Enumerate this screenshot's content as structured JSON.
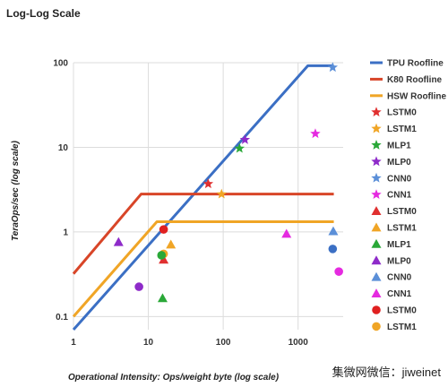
{
  "chart_data": {
    "type": "scatter",
    "title": "Log-Log Scale",
    "xlabel": "Operational Intensity: Ops/weight byte (log scale)",
    "ylabel": "TeraOps/sec (log scale)",
    "x_scale": "log",
    "y_scale": "log",
    "xlim": [
      1,
      4000
    ],
    "ylim": [
      0.07,
      100
    ],
    "x_ticks": [
      1,
      10,
      100,
      1000
    ],
    "x_tick_labels": [
      "1",
      "10",
      "100",
      "1000"
    ],
    "y_ticks": [
      0.1,
      1,
      10,
      100
    ],
    "y_tick_labels": [
      "0.1",
      "1",
      "10",
      "100"
    ],
    "grid": true,
    "legend_position": "right",
    "series": [
      {
        "name": "TPU Roofline",
        "kind": "line",
        "color": "#3b6fc4",
        "x": [
          1,
          1350,
          3000
        ],
        "y": [
          0.07,
          92,
          92
        ]
      },
      {
        "name": "K80 Roofline",
        "kind": "line",
        "color": "#d84528",
        "x": [
          1,
          8,
          3000
        ],
        "y": [
          0.32,
          2.8,
          2.8
        ]
      },
      {
        "name": "HSW Roofline",
        "kind": "line",
        "color": "#f0a526",
        "x": [
          1,
          13,
          3000
        ],
        "y": [
          0.1,
          1.32,
          1.32
        ]
      },
      {
        "name": "LSTM0",
        "kind": "point",
        "marker": "star",
        "color": "#e03030",
        "x": [
          63
        ],
        "y": [
          3.7
        ]
      },
      {
        "name": "LSTM1",
        "kind": "point",
        "marker": "star",
        "color": "#f0a526",
        "x": [
          95
        ],
        "y": [
          2.8
        ]
      },
      {
        "name": "MLP1",
        "kind": "point",
        "marker": "star",
        "color": "#2aa838",
        "x": [
          165
        ],
        "y": [
          9.7
        ]
      },
      {
        "name": "MLP0",
        "kind": "point",
        "marker": "star",
        "color": "#8e2bc9",
        "x": [
          195
        ],
        "y": [
          12.3
        ]
      },
      {
        "name": "CNN0",
        "kind": "point",
        "marker": "star",
        "color": "#5b8fd8",
        "x": [
          2900
        ],
        "y": [
          88
        ]
      },
      {
        "name": "CNN1",
        "kind": "point",
        "marker": "star",
        "color": "#e52ae0",
        "x": [
          1700
        ],
        "y": [
          14.5
        ]
      },
      {
        "name": "LSTM0",
        "kind": "point",
        "marker": "triangle",
        "color": "#e03030",
        "x": [
          16
        ],
        "y": [
          0.47
        ]
      },
      {
        "name": "LSTM1",
        "kind": "point",
        "marker": "triangle",
        "color": "#f0a526",
        "x": [
          20
        ],
        "y": [
          0.71
        ]
      },
      {
        "name": "MLP1",
        "kind": "point",
        "marker": "triangle",
        "color": "#2aa838",
        "x": [
          15.5
        ],
        "y": [
          0.165
        ]
      },
      {
        "name": "MLP0",
        "kind": "point",
        "marker": "triangle",
        "color": "#8e2bc9",
        "x": [
          4
        ],
        "y": [
          0.76
        ]
      },
      {
        "name": "CNN0",
        "kind": "point",
        "marker": "triangle",
        "color": "#5b8fd8",
        "x": [
          2950
        ],
        "y": [
          1.02
        ]
      },
      {
        "name": "CNN1",
        "kind": "point",
        "marker": "triangle",
        "color": "#e52ae0",
        "x": [
          700
        ],
        "y": [
          0.95
        ]
      },
      {
        "name": "LSTM0",
        "kind": "point",
        "marker": "circle",
        "color": "#e02020",
        "x": [
          16
        ],
        "y": [
          1.07
        ]
      },
      {
        "name": "LSTM1",
        "kind": "point",
        "marker": "circle",
        "color": "#f0a526",
        "x": [
          16
        ],
        "y": [
          0.55
        ]
      },
      {
        "name": "",
        "kind": "point",
        "marker": "circle",
        "color": "#2aa838",
        "x": [
          15
        ],
        "y": [
          0.53
        ]
      },
      {
        "name": "",
        "kind": "point",
        "marker": "circle",
        "color": "#8e2bc9",
        "x": [
          7.5
        ],
        "y": [
          0.225
        ]
      },
      {
        "name": "",
        "kind": "point",
        "marker": "circle",
        "color": "#3b6fc4",
        "x": [
          2900
        ],
        "y": [
          0.63
        ]
      },
      {
        "name": "",
        "kind": "point",
        "marker": "circle",
        "color": "#e52ae0",
        "x": [
          3500
        ],
        "y": [
          0.34
        ]
      }
    ],
    "legend": [
      {
        "label": "TPU Roofline",
        "marker": "line",
        "color": "#3b6fc4"
      },
      {
        "label": "K80 Roofline",
        "marker": "line",
        "color": "#d84528"
      },
      {
        "label": "HSW Roofline",
        "marker": "line",
        "color": "#f0a526"
      },
      {
        "label": "LSTM0",
        "marker": "star",
        "color": "#e03030"
      },
      {
        "label": "LSTM1",
        "marker": "star",
        "color": "#f0a526"
      },
      {
        "label": "MLP1",
        "marker": "star",
        "color": "#2aa838"
      },
      {
        "label": "MLP0",
        "marker": "star",
        "color": "#8e2bc9"
      },
      {
        "label": "CNN0",
        "marker": "star",
        "color": "#5b8fd8"
      },
      {
        "label": "CNN1",
        "marker": "star",
        "color": "#e52ae0"
      },
      {
        "label": "LSTM0",
        "marker": "triangle",
        "color": "#e03030"
      },
      {
        "label": "LSTM1",
        "marker": "triangle",
        "color": "#f0a526"
      },
      {
        "label": "MLP1",
        "marker": "triangle",
        "color": "#2aa838"
      },
      {
        "label": "MLP0",
        "marker": "triangle",
        "color": "#8e2bc9"
      },
      {
        "label": "CNN0",
        "marker": "triangle",
        "color": "#5b8fd8"
      },
      {
        "label": "CNN1",
        "marker": "triangle",
        "color": "#e52ae0"
      },
      {
        "label": "LSTM0",
        "marker": "circle",
        "color": "#e02020"
      },
      {
        "label": "LSTM1",
        "marker": "circle",
        "color": "#f0a526"
      }
    ]
  },
  "watermark": "集微网微信：jiweinet"
}
